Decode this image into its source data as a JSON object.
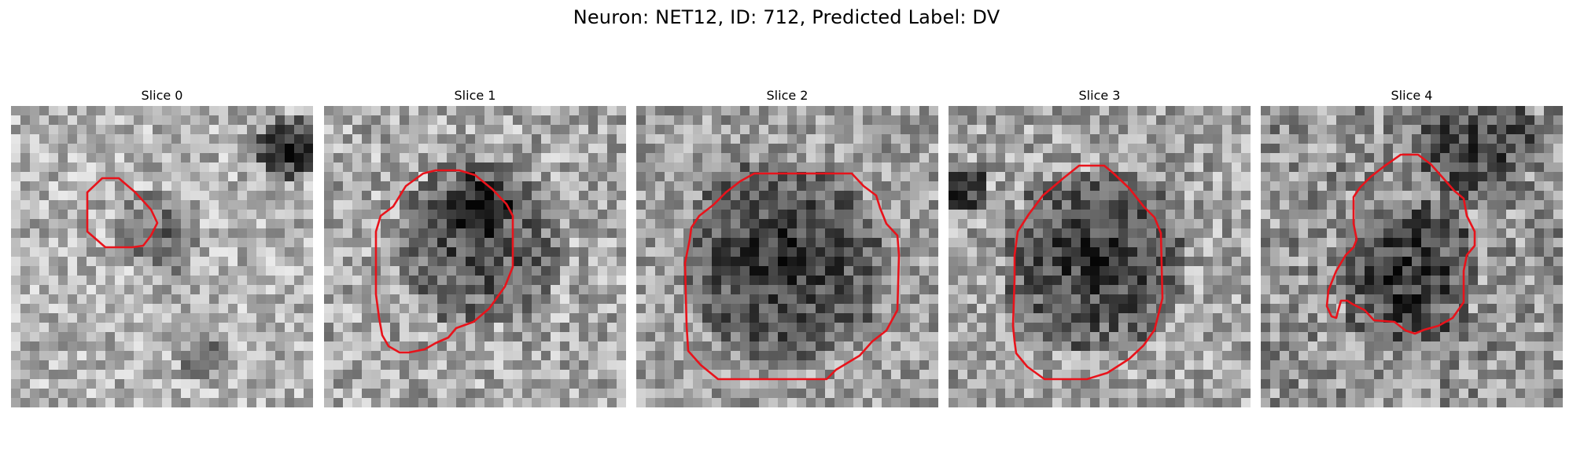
{
  "figure": {
    "title": "Neuron: NET12, ID: 712, Predicted Label: DV",
    "contour_color": "#e8131b",
    "image_colormap": "gray",
    "panels": [
      {
        "title": "Slice 0"
      },
      {
        "title": "Slice 1"
      },
      {
        "title": "Slice 2"
      },
      {
        "title": "Slice 3"
      },
      {
        "title": "Slice 4"
      }
    ]
  }
}
